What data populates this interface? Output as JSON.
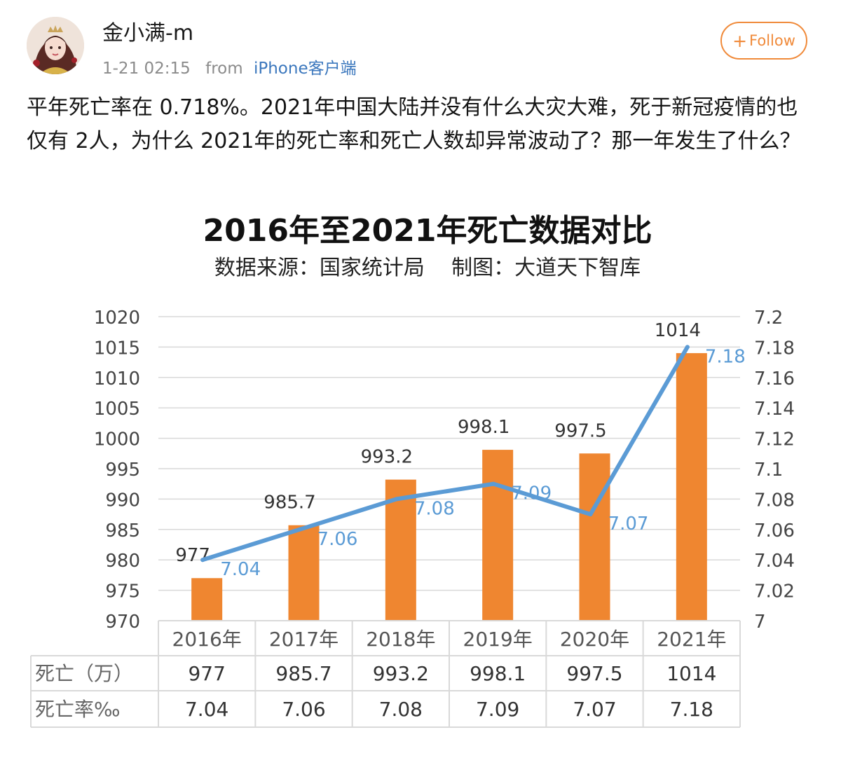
{
  "post": {
    "username": "金小满-m",
    "time": "1-21 02:15",
    "from_label": "from",
    "source": "iPhone客户端",
    "follow_label": "Follow",
    "follow_icon": "plus-icon",
    "text": "平年死亡率在 0.718%。2021年中国大陆并没有什么大灾大难，死于新冠疫情的也仅有 2人，为什么 2021年的死亡率和死亡人数却异常波动了？那一年发生了什么？",
    "avatar_icon": "avatar-illustration"
  },
  "chart_data": {
    "type": "bar",
    "title": "2016年至2021年死亡数据对比",
    "subtitle": "数据来源：国家统计局    制图：大道天下智库",
    "categories": [
      "2016年",
      "2017年",
      "2018年",
      "2019年",
      "2020年",
      "2021年"
    ],
    "series": [
      {
        "name": "死亡（万）",
        "type": "bar",
        "axis": "left",
        "values": [
          977,
          985.7,
          993.2,
          998.1,
          997.5,
          1014
        ],
        "color": "#ef8630"
      },
      {
        "name": "死亡率‰",
        "type": "line",
        "axis": "right",
        "values": [
          7.04,
          7.06,
          7.08,
          7.09,
          7.07,
          7.18
        ],
        "color": "#5b9bd5"
      }
    ],
    "left_axis": {
      "ylim": [
        970,
        1020
      ],
      "step": 5
    },
    "right_axis": {
      "ylim": [
        7,
        7.2
      ],
      "step": 0.02
    },
    "grid": true,
    "legend": "table-below",
    "table_rows": [
      {
        "label": "死亡（万）",
        "values": [
          "977",
          "985.7",
          "993.2",
          "998.1",
          "997.5",
          "1014"
        ]
      },
      {
        "label": "死亡率‰",
        "values": [
          "7.04",
          "7.06",
          "7.08",
          "7.09",
          "7.07",
          "7.18"
        ]
      }
    ]
  }
}
